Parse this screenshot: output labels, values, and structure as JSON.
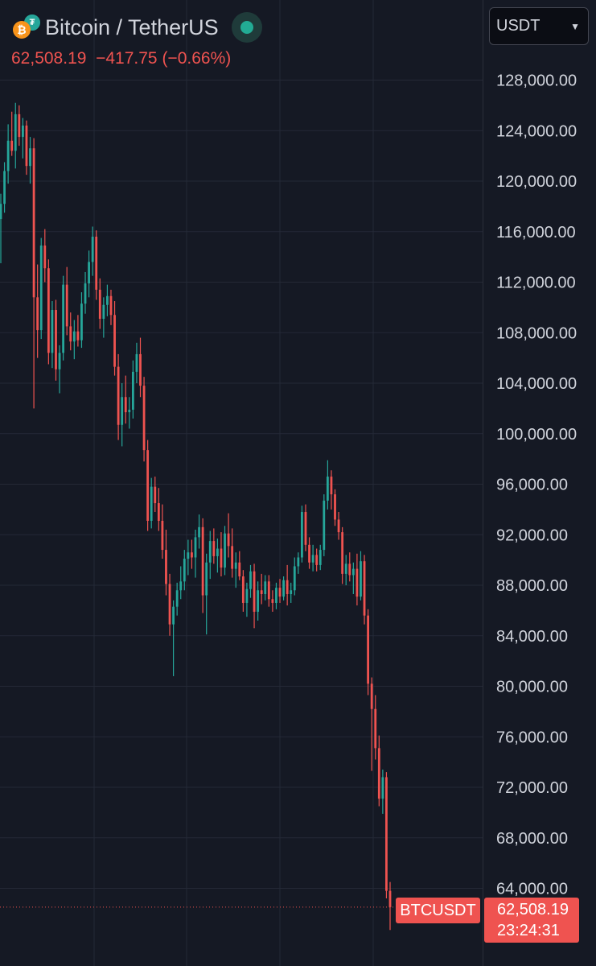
{
  "header": {
    "symbol_title": "Bitcoin / TetherUS",
    "base_icon": "bitcoin-icon",
    "quote_icon": "tether-icon",
    "base_glyph": "₿",
    "quote_glyph": "₮",
    "last_price": "62,508.19",
    "change": "−417.75 (−0.66%)",
    "market_status": "open"
  },
  "currency_select": {
    "value": "USDT"
  },
  "colors": {
    "background": "#151924",
    "grid": "#242936",
    "up": "#26a69a",
    "down": "#ef5350",
    "axis_text": "#d1d4dc"
  },
  "chart_data": {
    "type": "candlestick",
    "title": "Bitcoin / TetherUS",
    "ylim": [
      60000,
      131000
    ],
    "y_ticks": [
      128000,
      124000,
      120000,
      116000,
      112000,
      108000,
      104000,
      100000,
      96000,
      92000,
      88000,
      84000,
      80000,
      76000,
      72000,
      68000,
      64000
    ],
    "y_tick_labels": [
      "128,000.00",
      "124,000.00",
      "120,000.00",
      "116,000.00",
      "112,000.00",
      "108,000.00",
      "104,000.00",
      "100,000.00",
      "96,000.00",
      "92,000.00",
      "88,000.00",
      "84,000.00",
      "80,000.00",
      "76,000.00",
      "72,000.00",
      "68,000.00",
      "64,000.00"
    ],
    "grid": true,
    "ohlc": [
      [
        117000,
        119000,
        113500,
        118200
      ],
      [
        118200,
        121500,
        117500,
        120800
      ],
      [
        120800,
        124500,
        119800,
        123200
      ],
      [
        123200,
        125500,
        122000,
        122400
      ],
      [
        122400,
        126200,
        121000,
        125300
      ],
      [
        125300,
        126000,
        122800,
        123500
      ],
      [
        123500,
        125000,
        121800,
        124400
      ],
      [
        124400,
        124800,
        120500,
        121200
      ],
      [
        121200,
        123500,
        119800,
        122600
      ],
      [
        122600,
        123400,
        102000,
        110800
      ],
      [
        110800,
        113400,
        106000,
        108200
      ],
      [
        108200,
        115500,
        107500,
        114900
      ],
      [
        114900,
        116200,
        112000,
        113100
      ],
      [
        113100,
        113800,
        105500,
        106400
      ],
      [
        106400,
        110500,
        105200,
        109800
      ],
      [
        109800,
        110600,
        104200,
        105100
      ],
      [
        105100,
        107000,
        103200,
        106400
      ],
      [
        106400,
        112500,
        105800,
        111800
      ],
      [
        111800,
        113200,
        107800,
        108500
      ],
      [
        108500,
        109600,
        106600,
        107300
      ],
      [
        107300,
        109000,
        105900,
        108100
      ],
      [
        108100,
        109400,
        106900,
        107400
      ],
      [
        107400,
        111200,
        106800,
        110300
      ],
      [
        110300,
        112800,
        109500,
        111900
      ],
      [
        111900,
        114500,
        110800,
        113600
      ],
      [
        113600,
        116400,
        112500,
        115600
      ],
      [
        115600,
        116100,
        110600,
        111400
      ],
      [
        111400,
        112300,
        108300,
        109100
      ],
      [
        109100,
        110800,
        107600,
        110200
      ],
      [
        110200,
        111800,
        109300,
        110900
      ],
      [
        110900,
        111400,
        108600,
        109400
      ],
      [
        109400,
        110500,
        104600,
        105300
      ],
      [
        105300,
        106300,
        99500,
        100700
      ],
      [
        100700,
        104000,
        99000,
        102900
      ],
      [
        102900,
        104600,
        100800,
        101700
      ],
      [
        101700,
        102900,
        100400,
        101900
      ],
      [
        101900,
        105800,
        101200,
        104900
      ],
      [
        104900,
        107200,
        104000,
        106300
      ],
      [
        106300,
        107600,
        102900,
        103800
      ],
      [
        103800,
        104500,
        97800,
        98700
      ],
      [
        98700,
        99500,
        92300,
        93100
      ],
      [
        93100,
        96500,
        92500,
        95800
      ],
      [
        95800,
        96600,
        93800,
        94500
      ],
      [
        94500,
        95700,
        92300,
        93100
      ],
      [
        93100,
        94400,
        90100,
        90800
      ],
      [
        90800,
        92400,
        87200,
        88100
      ],
      [
        88100,
        88900,
        84000,
        84900
      ],
      [
        84900,
        86800,
        80800,
        86300
      ],
      [
        86300,
        88200,
        85600,
        87600
      ],
      [
        87600,
        89500,
        86900,
        88300
      ],
      [
        88300,
        90800,
        87600,
        90100
      ],
      [
        90100,
        91600,
        88800,
        90600
      ],
      [
        90600,
        91600,
        89300,
        90200
      ],
      [
        90200,
        92400,
        88600,
        91800
      ],
      [
        91800,
        93600,
        90900,
        92600
      ],
      [
        92600,
        93300,
        85800,
        87200
      ],
      [
        87200,
        90500,
        84100,
        89800
      ],
      [
        89800,
        92300,
        88500,
        91500
      ],
      [
        91500,
        92500,
        89700,
        90300
      ],
      [
        90300,
        91700,
        89000,
        90900
      ],
      [
        90900,
        92200,
        88700,
        89400
      ],
      [
        89400,
        92700,
        88800,
        92100
      ],
      [
        92100,
        93700,
        90200,
        91100
      ],
      [
        91100,
        92500,
        88600,
        89300
      ],
      [
        89300,
        90600,
        87800,
        89800
      ],
      [
        89800,
        90700,
        88400,
        88700
      ],
      [
        88700,
        89200,
        85900,
        86600
      ],
      [
        86600,
        88200,
        85500,
        87700
      ],
      [
        87700,
        89600,
        87000,
        89100
      ],
      [
        89100,
        89700,
        84600,
        85900
      ],
      [
        85900,
        88300,
        85200,
        87600
      ],
      [
        87600,
        88900,
        86500,
        87300
      ],
      [
        87300,
        88800,
        86800,
        88300
      ],
      [
        88300,
        88800,
        86300,
        86900
      ],
      [
        86900,
        87600,
        85900,
        86600
      ],
      [
        86600,
        88200,
        86100,
        87800
      ],
      [
        87800,
        88500,
        86600,
        87100
      ],
      [
        87100,
        88700,
        86800,
        88400
      ],
      [
        88400,
        89600,
        86400,
        87300
      ],
      [
        87300,
        88200,
        86600,
        87600
      ],
      [
        87600,
        90200,
        87200,
        89500
      ],
      [
        89500,
        90600,
        88900,
        90200
      ],
      [
        90200,
        94300,
        89800,
        93800
      ],
      [
        93800,
        94400,
        90700,
        91200
      ],
      [
        91200,
        91800,
        89300,
        89800
      ],
      [
        89800,
        91200,
        89100,
        90400
      ],
      [
        90400,
        90900,
        89100,
        89600
      ],
      [
        89600,
        91200,
        89200,
        90800
      ],
      [
        90800,
        95200,
        90300,
        94700
      ],
      [
        94700,
        97900,
        94000,
        96600
      ],
      [
        96600,
        97100,
        94000,
        95200
      ],
      [
        95200,
        95600,
        92700,
        93200
      ],
      [
        93200,
        93800,
        91600,
        92200
      ],
      [
        92200,
        92600,
        88100,
        88900
      ],
      [
        88900,
        90400,
        88000,
        89700
      ],
      [
        89700,
        90600,
        88300,
        88800
      ],
      [
        88800,
        89800,
        87300,
        89300
      ],
      [
        89300,
        90500,
        86400,
        87100
      ],
      [
        87100,
        90700,
        86800,
        89900
      ],
      [
        89900,
        90400,
        84900,
        85600
      ],
      [
        85600,
        86100,
        79300,
        80200
      ],
      [
        80200,
        80700,
        73300,
        78200
      ],
      [
        78200,
        79300,
        74200,
        75100
      ],
      [
        75100,
        76100,
        70500,
        71100
      ],
      [
        71100,
        73400,
        69900,
        72800
      ],
      [
        72800,
        73200,
        63200,
        63800
      ],
      [
        63800,
        64500,
        60700,
        62508
      ]
    ]
  },
  "price_marker": {
    "symbol": "BTCUSDT",
    "price": "62,508.19",
    "countdown": "23:24:31"
  }
}
